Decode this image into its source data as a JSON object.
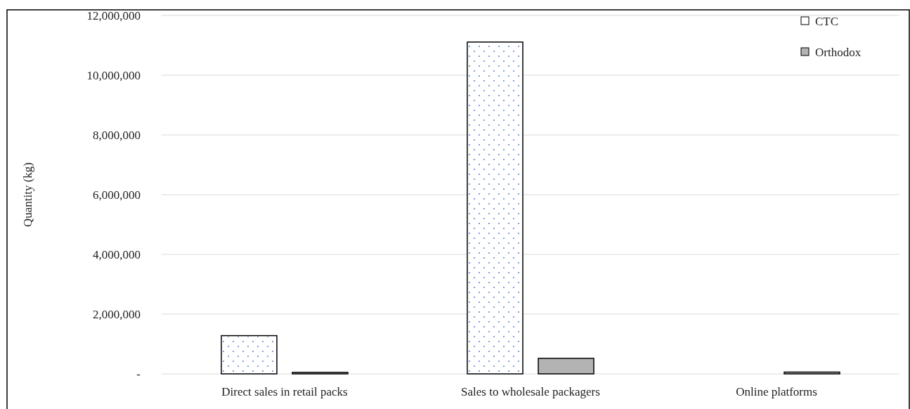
{
  "chart_data": {
    "type": "bar",
    "ylabel": "Quantity (kg)",
    "categories": [
      "Direct sales in retail packs",
      "Sales to wholesale packagers",
      "Online platforms"
    ],
    "series": [
      {
        "name": "CTC",
        "color": "#ffffff",
        "values": [
          1280000,
          11110000,
          0
        ]
      },
      {
        "name": "Orthodox",
        "color": "#b3b3b3",
        "values": [
          50000,
          520000,
          60000
        ]
      }
    ],
    "ylim": [
      0,
      12000000
    ],
    "yticks": [
      {
        "value": 0,
        "label": "-"
      },
      {
        "value": 2000000,
        "label": "2,000,000"
      },
      {
        "value": 4000000,
        "label": "4,000,000"
      },
      {
        "value": 6000000,
        "label": "6,000,000"
      },
      {
        "value": 8000000,
        "label": "8,000,000"
      },
      {
        "value": 10000000,
        "label": "10,000,000"
      },
      {
        "value": 12000000,
        "label": "12,000,000"
      }
    ],
    "grid": "y",
    "legend": "top right"
  }
}
